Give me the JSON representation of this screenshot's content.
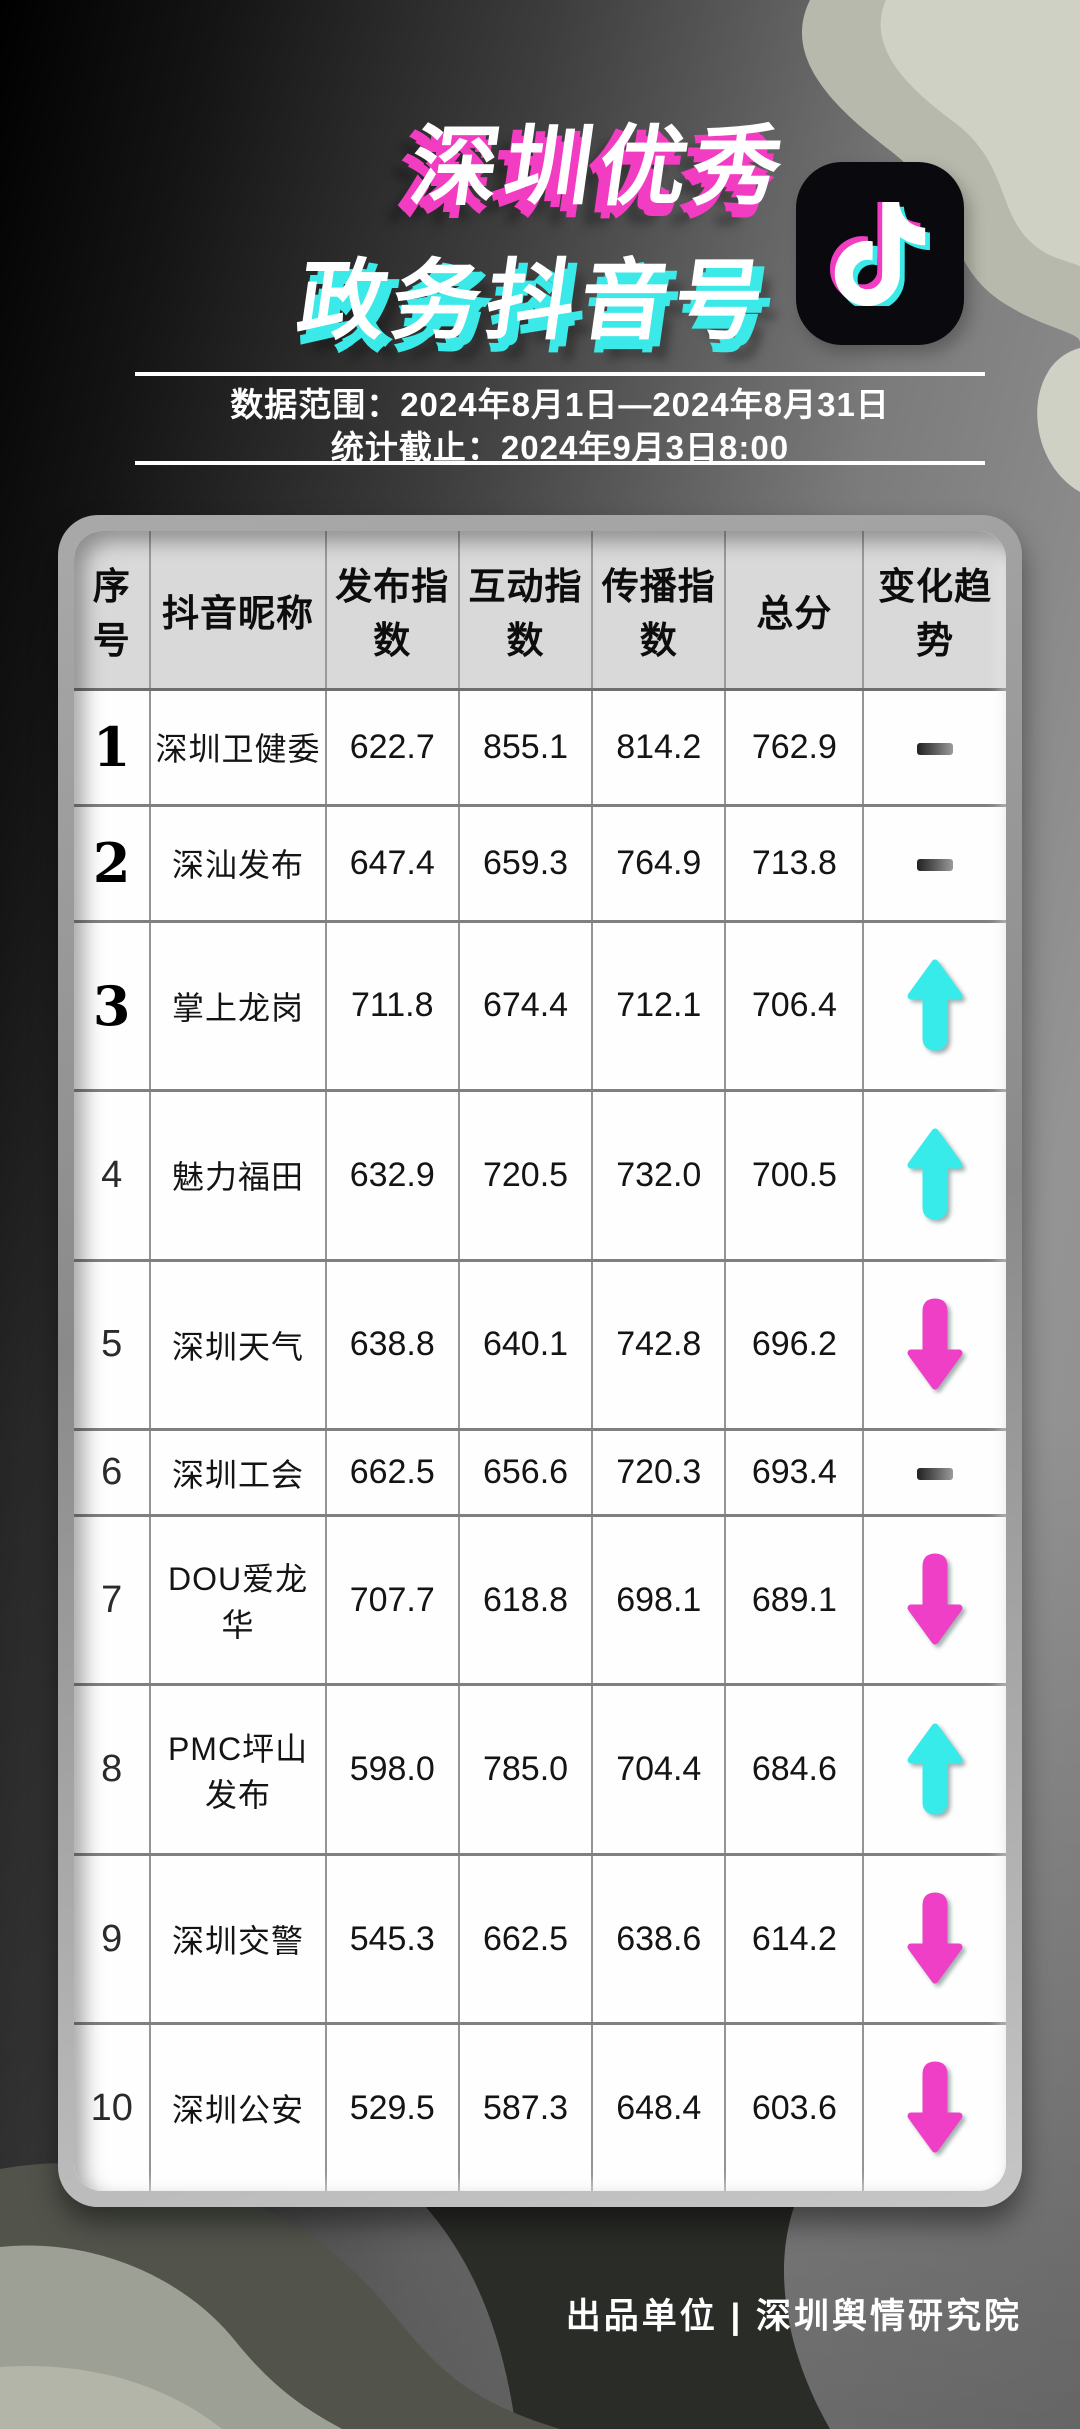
{
  "header": {
    "title_line1": "深圳优秀",
    "title_line2": "政务抖音号",
    "logo": "douyin-note-icon",
    "date_range": "数据范围：2024年8月1日—2024年8月31日",
    "stat_deadline": "统计截止：2024年9月3日8:00"
  },
  "table": {
    "columns": [
      "序号",
      "抖音昵称",
      "发布指数",
      "互动指数",
      "传播指数",
      "总分",
      "变化趋势"
    ],
    "rows": [
      {
        "rank": "1",
        "name": "深圳卫健委",
        "publish": "622.7",
        "interact": "855.1",
        "spread": "814.2",
        "total": "762.9",
        "trend": "flat"
      },
      {
        "rank": "2",
        "name": "深汕发布",
        "publish": "647.4",
        "interact": "659.3",
        "spread": "764.9",
        "total": "713.8",
        "trend": "flat"
      },
      {
        "rank": "3",
        "name": "掌上龙岗",
        "publish": "711.8",
        "interact": "674.4",
        "spread": "712.1",
        "total": "706.4",
        "trend": "up"
      },
      {
        "rank": "4",
        "name": "魅力福田",
        "publish": "632.9",
        "interact": "720.5",
        "spread": "732.0",
        "total": "700.5",
        "trend": "up"
      },
      {
        "rank": "5",
        "name": "深圳天气",
        "publish": "638.8",
        "interact": "640.1",
        "spread": "742.8",
        "total": "696.2",
        "trend": "down"
      },
      {
        "rank": "6",
        "name": "深圳工会",
        "publish": "662.5",
        "interact": "656.6",
        "spread": "720.3",
        "total": "693.4",
        "trend": "flat"
      },
      {
        "rank": "7",
        "name": "DOU爱龙华",
        "publish": "707.7",
        "interact": "618.8",
        "spread": "698.1",
        "total": "689.1",
        "trend": "down"
      },
      {
        "rank": "8",
        "name": "PMC坪山发布",
        "publish": "598.0",
        "interact": "785.0",
        "spread": "704.4",
        "total": "684.6",
        "trend": "up"
      },
      {
        "rank": "9",
        "name": "深圳交警",
        "publish": "545.3",
        "interact": "662.5",
        "spread": "638.6",
        "total": "614.2",
        "trend": "down"
      },
      {
        "rank": "10",
        "name": "深圳公安",
        "publish": "529.5",
        "interact": "587.3",
        "spread": "648.4",
        "total": "603.6",
        "trend": "down"
      }
    ]
  },
  "footer": {
    "credit": "出品单位 | 深圳舆情研究院"
  },
  "colors": {
    "up_arrow": "#38ebeb",
    "down_arrow": "#ee3fc6",
    "title_pink_shadow": "#f23dc3",
    "title_cyan_shadow": "#3ce9e9",
    "card_header_bg": "#d9d9d9",
    "logo_bg": "#0a0a0e"
  }
}
